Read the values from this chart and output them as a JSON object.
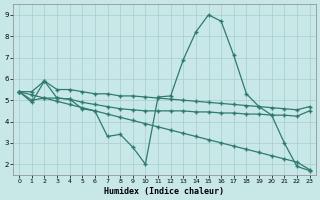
{
  "xlabel": "Humidex (Indice chaleur)",
  "bg_color": "#c8e8e8",
  "line_color": "#2e7b6e",
  "grid_color": "#a8cccc",
  "xlim": [
    -0.5,
    23.5
  ],
  "ylim": [
    1.5,
    9.5
  ],
  "xticks": [
    0,
    1,
    2,
    3,
    4,
    5,
    6,
    7,
    8,
    9,
    10,
    11,
    12,
    13,
    14,
    15,
    16,
    17,
    18,
    19,
    20,
    21,
    22,
    23
  ],
  "yticks": [
    2,
    3,
    4,
    5,
    6,
    7,
    8,
    9
  ],
  "line1": {
    "x": [
      0,
      1,
      2,
      3,
      4,
      5,
      6,
      7,
      8,
      9,
      10,
      11,
      12,
      13,
      14,
      15,
      16,
      17,
      18,
      19,
      20,
      21,
      22,
      23
    ],
    "y": [
      5.4,
      5.4,
      5.9,
      5.5,
      5.5,
      5.4,
      5.3,
      5.3,
      5.2,
      5.2,
      5.15,
      5.1,
      5.05,
      5.0,
      4.95,
      4.9,
      4.85,
      4.8,
      4.75,
      4.7,
      4.65,
      4.6,
      4.55,
      4.7
    ]
  },
  "line2": {
    "x": [
      0,
      1,
      2,
      3,
      4,
      5,
      6,
      7,
      8,
      9,
      10,
      11,
      12,
      13,
      14,
      15,
      16,
      17,
      18,
      19,
      20,
      21,
      22,
      23
    ],
    "y": [
      5.4,
      5.0,
      5.1,
      5.1,
      5.05,
      4.9,
      4.8,
      4.7,
      4.6,
      4.55,
      4.5,
      4.5,
      4.5,
      4.5,
      4.45,
      4.45,
      4.4,
      4.4,
      4.35,
      4.35,
      4.3,
      4.3,
      4.25,
      4.5
    ]
  },
  "line3": {
    "x": [
      0,
      1,
      2,
      3,
      4,
      5,
      6,
      7,
      8,
      9,
      10,
      11,
      12,
      13,
      14,
      15,
      16,
      17,
      18,
      19,
      20,
      21,
      22,
      23
    ],
    "y": [
      5.4,
      4.9,
      5.9,
      5.1,
      5.05,
      4.6,
      4.5,
      3.3,
      3.4,
      2.8,
      2.0,
      5.15,
      5.2,
      6.9,
      8.2,
      9.0,
      8.7,
      7.1,
      5.3,
      4.7,
      4.3,
      3.0,
      1.9,
      1.7
    ]
  },
  "line4": {
    "x": [
      0,
      1,
      2,
      3,
      4,
      5,
      6,
      7,
      8,
      9,
      10,
      11,
      12,
      13,
      14,
      15,
      16,
      17,
      18,
      19,
      20,
      21,
      22,
      23
    ],
    "y": [
      5.4,
      5.25,
      5.1,
      4.95,
      4.8,
      4.65,
      4.5,
      4.35,
      4.2,
      4.05,
      3.9,
      3.75,
      3.6,
      3.45,
      3.3,
      3.15,
      3.0,
      2.85,
      2.7,
      2.55,
      2.4,
      2.25,
      2.1,
      1.75
    ]
  }
}
